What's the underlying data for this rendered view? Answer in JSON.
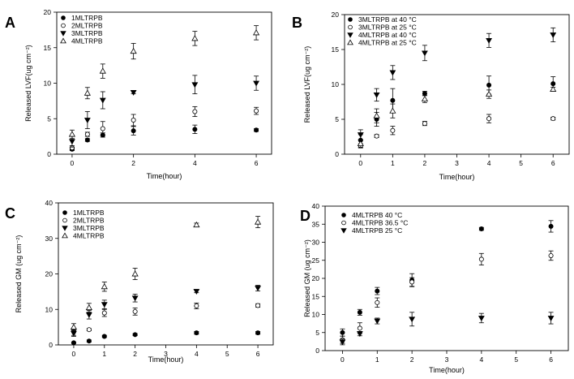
{
  "chart_data": [
    {
      "panel": "A",
      "type": "scatter",
      "xlabel": "Time(hour)",
      "ylabel": "Released LVF(ug cm⁻²)",
      "xlim": [
        -0.5,
        6.5
      ],
      "ylim": [
        0,
        20
      ],
      "xticks": [
        0,
        2,
        4,
        6
      ],
      "yticks": [
        0,
        5,
        10,
        15,
        20
      ],
      "x": [
        0,
        0.5,
        1,
        2,
        4,
        6
      ],
      "legend_position": "top-left",
      "series": [
        {
          "name": "1MLTRPB",
          "marker": "circle-filled",
          "values": [
            0.7,
            2.0,
            2.7,
            3.3,
            3.5,
            3.4
          ],
          "errors": [
            0.2,
            0.2,
            0.3,
            0.6,
            0.6,
            0.2
          ]
        },
        {
          "name": "2MLTRPB",
          "marker": "circle-open",
          "values": [
            0.9,
            2.8,
            3.6,
            4.8,
            6.0,
            6.1
          ],
          "errors": [
            0.3,
            0.3,
            1.0,
            0.8,
            0.7,
            0.5
          ]
        },
        {
          "name": "3MLTRPB",
          "marker": "triangle-down-filled",
          "values": [
            1.8,
            4.8,
            7.6,
            8.7,
            9.8,
            10.0
          ],
          "errors": [
            0.8,
            1.2,
            1.2,
            0.2,
            1.3,
            1.0
          ]
        },
        {
          "name": "4MLTRPB",
          "marker": "triangle-up-open",
          "values": [
            2.8,
            8.6,
            11.7,
            14.5,
            16.3,
            17.1
          ],
          "errors": [
            0.6,
            0.8,
            1.0,
            1.1,
            1.0,
            1.0
          ]
        }
      ]
    },
    {
      "panel": "B",
      "type": "scatter",
      "xlabel": "Time(hour)",
      "ylabel": "Released LVF(ug cm⁻²)",
      "xlim": [
        -0.5,
        6.5
      ],
      "ylim": [
        0,
        20
      ],
      "xticks": [
        0,
        1,
        2,
        3,
        4,
        5,
        6
      ],
      "yticks": [
        0,
        5,
        10,
        15,
        20
      ],
      "x": [
        0,
        0.5,
        1,
        2,
        4,
        6
      ],
      "legend_position": "top-left",
      "series": [
        {
          "name": "3MLTRPB at 40 °C",
          "marker": "circle-filled",
          "values": [
            2.0,
            5.0,
            7.7,
            8.7,
            9.9,
            10.1
          ],
          "errors": [
            0.8,
            1.0,
            1.7,
            0.3,
            1.3,
            1.0
          ]
        },
        {
          "name": "3MLTRPB at 25 °C",
          "marker": "circle-open",
          "values": [
            1.2,
            2.6,
            3.4,
            4.4,
            5.1,
            5.1
          ],
          "errors": [
            0.3,
            0.2,
            0.6,
            0.3,
            0.6,
            0.2
          ]
        },
        {
          "name": "4MLTRPB at 40 °C",
          "marker": "triangle-down-filled",
          "values": [
            2.8,
            8.5,
            11.7,
            14.5,
            16.3,
            17.1
          ],
          "errors": [
            0.7,
            0.9,
            1.0,
            1.1,
            1.0,
            1.0
          ]
        },
        {
          "name": "4MLTRPB at 25 °C",
          "marker": "triangle-up-open",
          "values": [
            1.5,
            5.5,
            6.2,
            7.9,
            8.6,
            9.3
          ],
          "errors": [
            0.5,
            1.0,
            1.0,
            0.5,
            0.6,
            0.3
          ]
        }
      ]
    },
    {
      "panel": "C",
      "type": "scatter",
      "xlabel": "Time(hour)",
      "ylabel": "Released GM (ug cm⁻²)",
      "xlim": [
        -0.5,
        6.5
      ],
      "ylim": [
        0,
        40
      ],
      "xticks": [
        0,
        1,
        2,
        3,
        4,
        5,
        6
      ],
      "yticks": [
        0,
        10,
        20,
        30,
        40
      ],
      "x": [
        0,
        0.5,
        1,
        2,
        4,
        6
      ],
      "legend_position": "top-left",
      "series": [
        {
          "name": "1MLTRPB",
          "marker": "circle-filled",
          "values": [
            0.6,
            1.1,
            2.4,
            2.9,
            3.4,
            3.4
          ],
          "errors": [
            0.2,
            0.3,
            0.3,
            0.3,
            0.4,
            0.4
          ]
        },
        {
          "name": "2MLTRPB",
          "marker": "circle-open",
          "values": [
            3.7,
            4.3,
            9.0,
            9.4,
            11.0,
            11.1
          ],
          "errors": [
            1.0,
            0.3,
            1.0,
            1.0,
            0.8,
            0.5
          ]
        },
        {
          "name": "3MLTRPB",
          "marker": "triangle-down-filled",
          "values": [
            3.3,
            8.5,
            11.4,
            13.2,
            15.1,
            16.0
          ],
          "errors": [
            0.9,
            1.2,
            1.2,
            1.1,
            0.4,
            0.8
          ]
        },
        {
          "name": "4MLTRPB",
          "marker": "triangle-up-open",
          "values": [
            5.0,
            10.5,
            16.4,
            20.0,
            33.8,
            34.6
          ],
          "errors": [
            1.0,
            1.2,
            1.3,
            1.6,
            0.5,
            1.6
          ]
        }
      ]
    },
    {
      "panel": "D",
      "type": "scatter",
      "xlabel": "Time(hour)",
      "ylabel": "Released GM (ug cm⁻²)",
      "xlim": [
        -0.5,
        6.5
      ],
      "ylim": [
        0,
        40
      ],
      "xticks": [
        0,
        1,
        2,
        3,
        4,
        5,
        6
      ],
      "yticks": [
        0,
        5,
        10,
        15,
        20,
        25,
        30,
        35,
        40
      ],
      "x": [
        0,
        0.5,
        1,
        2,
        4,
        6
      ],
      "legend_position": "top-left",
      "series": [
        {
          "name": "4MLTRPB 40 °C",
          "marker": "circle-filled",
          "values": [
            5.0,
            10.6,
            16.5,
            19.5,
            33.7,
            34.4
          ],
          "errors": [
            1.0,
            0.8,
            1.0,
            1.8,
            0.4,
            1.6
          ]
        },
        {
          "name": "4MLTRPB 36.5 °C",
          "marker": "circle-open",
          "values": [
            3.0,
            6.2,
            13.3,
            19.0,
            25.3,
            26.3
          ],
          "errors": [
            1.0,
            1.5,
            1.3,
            1.2,
            1.6,
            1.3
          ]
        },
        {
          "name": "4MLTRPB 25 °C",
          "marker": "triangle-down-filled",
          "values": [
            2.4,
            4.7,
            8.2,
            8.7,
            9.0,
            9.0
          ],
          "errors": [
            0.8,
            0.6,
            0.8,
            1.9,
            1.3,
            1.6
          ]
        }
      ]
    }
  ],
  "panel_letters": [
    "A",
    "B",
    "C",
    "D"
  ]
}
